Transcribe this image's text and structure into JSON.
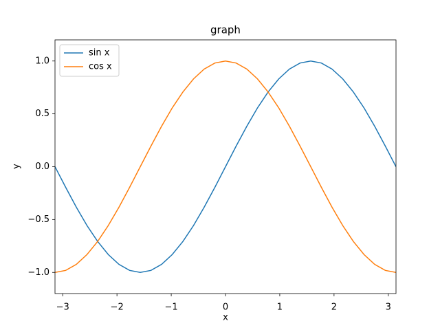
{
  "chart_data": {
    "type": "line",
    "title": "graph",
    "x_label": "x",
    "y_label": "y",
    "x": [
      -3.142,
      -2.945,
      -2.749,
      -2.553,
      -2.356,
      -2.16,
      -1.963,
      -1.767,
      -1.571,
      -1.374,
      -1.178,
      -0.982,
      -0.785,
      -0.589,
      -0.393,
      -0.196,
      0,
      0.196,
      0.393,
      0.589,
      0.785,
      0.982,
      1.178,
      1.374,
      1.571,
      1.767,
      1.963,
      2.16,
      2.356,
      2.553,
      2.749,
      2.945,
      3.142
    ],
    "series": [
      {
        "name": "sin x",
        "color": "#1f77b4",
        "values": [
          0,
          -0.195,
          -0.383,
          -0.556,
          -0.707,
          -0.831,
          -0.924,
          -0.981,
          -1,
          -0.981,
          -0.924,
          -0.831,
          -0.707,
          -0.556,
          -0.383,
          -0.195,
          0,
          0.195,
          0.383,
          0.556,
          0.707,
          0.831,
          0.924,
          0.981,
          1,
          0.981,
          0.924,
          0.831,
          0.707,
          0.556,
          0.383,
          0.195,
          0
        ]
      },
      {
        "name": "cos x",
        "color": "#ff7f0e",
        "values": [
          -1,
          -0.981,
          -0.924,
          -0.831,
          -0.707,
          -0.556,
          -0.383,
          -0.195,
          0,
          0.195,
          0.383,
          0.556,
          0.707,
          0.831,
          0.924,
          0.981,
          1,
          0.981,
          0.924,
          0.831,
          0.707,
          0.556,
          0.383,
          0.195,
          0,
          -0.195,
          -0.383,
          -0.556,
          -0.707,
          -0.831,
          -0.924,
          -0.981,
          -1
        ]
      }
    ],
    "xlim": [
      -3.142,
      3.142
    ],
    "xticks": [
      {
        "value": -3,
        "label": "−3"
      },
      {
        "value": -2,
        "label": "−2"
      },
      {
        "value": -1,
        "label": "−1"
      },
      0,
      1,
      2,
      3
    ],
    "ylim": [
      -1.2,
      1.2
    ],
    "yticks": [
      {
        "value": -1,
        "label": "−1.0"
      },
      {
        "value": -0.5,
        "label": "−0.5"
      },
      {
        "value": 0,
        "label": "0.0"
      },
      {
        "value": 0.5,
        "label": "0.5"
      },
      {
        "value": 1,
        "label": "1.0"
      }
    ],
    "grid": false,
    "legend": "upper left"
  }
}
